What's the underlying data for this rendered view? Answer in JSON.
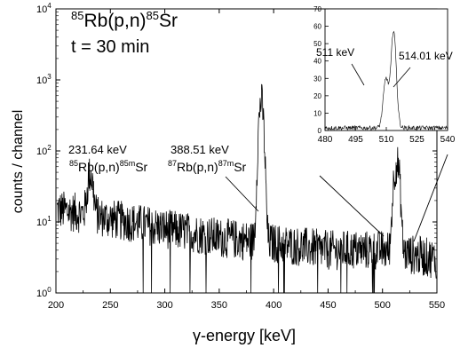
{
  "chart_data": {
    "type": "line",
    "title_lines": [
      {
        "pre": "85",
        "a": "Rb(p,n)",
        "sup": "85",
        "b": "Sr"
      },
      {
        "text": "t = 30 min"
      }
    ],
    "xlabel": "γ-energy [keV]",
    "ylabel": "counts / channel",
    "xlim": [
      200,
      550
    ],
    "ylim": [
      1,
      10000
    ],
    "yscale": "log",
    "xticks": [
      200,
      250,
      300,
      350,
      400,
      450,
      500,
      550
    ],
    "yticks": [
      {
        "base": "10",
        "exp": "0",
        "value": 1
      },
      {
        "base": "10",
        "exp": "1",
        "value": 10
      },
      {
        "base": "10",
        "exp": "2",
        "value": 100
      },
      {
        "base": "10",
        "exp": "3",
        "value": 1000
      },
      {
        "base": "10",
        "exp": "4",
        "value": 10000
      }
    ],
    "series": [
      {
        "baseline": [
          [
            200,
            15
          ],
          [
            250,
            11
          ],
          [
            300,
            8
          ],
          [
            350,
            6
          ],
          [
            400,
            5
          ],
          [
            450,
            4
          ],
          [
            500,
            4
          ],
          [
            550,
            3
          ]
        ],
        "peaks": [
          {
            "x": 231.64,
            "height": 35,
            "sigma": 2.2
          },
          {
            "x": 388.51,
            "height": 500,
            "sigma": 1.8
          },
          {
            "x": 511,
            "height": 30,
            "sigma": 1.6
          },
          {
            "x": 514.01,
            "height": 55,
            "sigma": 1.8
          }
        ]
      }
    ],
    "annotations": [
      {
        "x": 231.64,
        "line1": "231.64 keV",
        "pre": "85",
        "a": "Rb(p,n)",
        "sup": "85m",
        "b": "Sr"
      },
      {
        "x": 388.51,
        "line1": "388.51 keV",
        "pre": "87",
        "a": "Rb(p,n)",
        "sup": "87m",
        "b": "Sr"
      }
    ],
    "inset": {
      "xlim": [
        480,
        540
      ],
      "ylim": [
        0,
        70
      ],
      "xticks": [
        480,
        495,
        510,
        525,
        540
      ],
      "yticks": [
        0,
        10,
        20,
        30,
        40,
        50,
        60,
        70
      ],
      "labels": [
        "511 keV",
        "514.01 keV"
      ],
      "series": [
        {
          "baseline": 1.5,
          "peaks": [
            {
              "x": 509.8,
              "height": 28,
              "sigma": 1.3
            },
            {
              "x": 513.6,
              "height": 56,
              "sigma": 1.3
            }
          ]
        }
      ]
    }
  }
}
